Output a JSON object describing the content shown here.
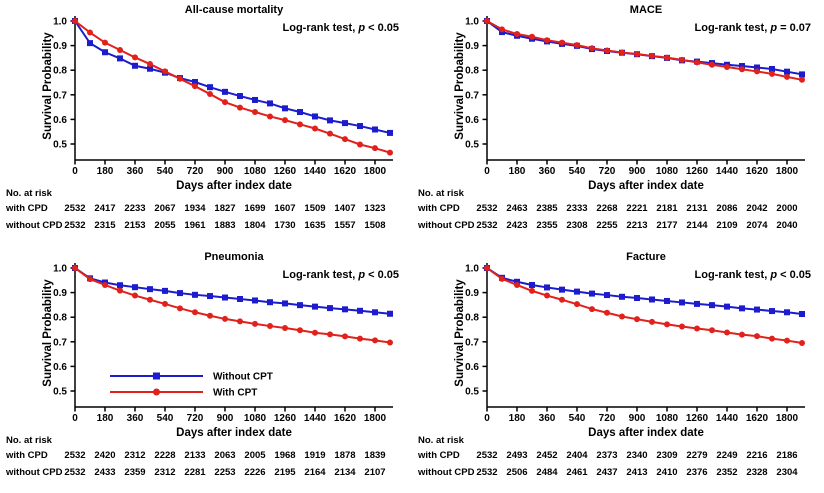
{
  "figure": {
    "background": "#ffffff",
    "colors": {
      "blue": "#1c1ccd",
      "red": "#e0211c",
      "axis": "#000000"
    },
    "ylabel": "Survival Probability",
    "xlabel": "Days after index date",
    "yticks": [
      "1.0",
      "0.9",
      "0.8",
      "0.7",
      "0.6",
      "0.5"
    ],
    "xticks": [
      0,
      180,
      360,
      540,
      720,
      900,
      1080,
      1260,
      1440,
      1620,
      1800
    ],
    "risk_header": "No. at risk",
    "risk_rows": [
      "with CPD",
      "without CPD"
    ],
    "legend": [
      {
        "label": "Without CPT",
        "series": "blue",
        "marker": "square"
      },
      {
        "label": "With CPT",
        "series": "red",
        "marker": "circle"
      }
    ]
  },
  "chart_data": [
    {
      "type": "line",
      "title": "All-cause mortality",
      "annotation": {
        "pre": "Log-rank test, ",
        "p": "p",
        "post": " < 0.05"
      },
      "xlabel": "Days after index date",
      "ylabel": "Survival Probability",
      "ylim": [
        0.5,
        1.0
      ],
      "xlim": [
        0,
        1890
      ],
      "x": [
        0,
        90,
        180,
        270,
        360,
        450,
        540,
        630,
        720,
        810,
        900,
        990,
        1080,
        1170,
        1260,
        1350,
        1440,
        1530,
        1620,
        1710,
        1800,
        1890
      ],
      "series": [
        {
          "name": "Without CPT",
          "color": "#1c1ccd",
          "marker": "square",
          "values": [
            1.0,
            0.91,
            0.873,
            0.848,
            0.818,
            0.806,
            0.79,
            0.768,
            0.752,
            0.731,
            0.712,
            0.695,
            0.679,
            0.665,
            0.645,
            0.63,
            0.612,
            0.596,
            0.585,
            0.573,
            0.559,
            0.545
          ]
        },
        {
          "name": "With CPT",
          "color": "#e0211c",
          "marker": "circle",
          "values": [
            1.0,
            0.953,
            0.912,
            0.882,
            0.852,
            0.825,
            0.795,
            0.765,
            0.735,
            0.703,
            0.67,
            0.648,
            0.63,
            0.612,
            0.597,
            0.58,
            0.563,
            0.542,
            0.52,
            0.498,
            0.483,
            0.465
          ]
        }
      ],
      "legend": false,
      "risk_table": [
        [
          2532,
          2417,
          2233,
          2067,
          1934,
          1827,
          1699,
          1607,
          1509,
          1407,
          1323
        ],
        [
          2532,
          2315,
          2153,
          2055,
          1961,
          1883,
          1804,
          1730,
          1635,
          1557,
          1508
        ]
      ]
    },
    {
      "type": "line",
      "title": "MACE",
      "annotation": {
        "pre": "Log-rank test, ",
        "p": "p",
        "post": " = 0.07"
      },
      "xlabel": "Days after index date",
      "ylabel": "Survival Probability",
      "ylim": [
        0.5,
        1.0
      ],
      "xlim": [
        0,
        1890
      ],
      "x": [
        0,
        90,
        180,
        270,
        360,
        450,
        540,
        630,
        720,
        810,
        900,
        990,
        1080,
        1170,
        1260,
        1350,
        1440,
        1530,
        1620,
        1710,
        1800,
        1890
      ],
      "series": [
        {
          "name": "Without CPT",
          "color": "#1c1ccd",
          "marker": "square",
          "values": [
            1.0,
            0.955,
            0.94,
            0.928,
            0.917,
            0.907,
            0.899,
            0.886,
            0.878,
            0.871,
            0.865,
            0.857,
            0.85,
            0.84,
            0.835,
            0.829,
            0.822,
            0.817,
            0.811,
            0.805,
            0.794,
            0.783
          ]
        },
        {
          "name": "With CPT",
          "color": "#e0211c",
          "marker": "circle",
          "values": [
            1.0,
            0.966,
            0.947,
            0.936,
            0.922,
            0.912,
            0.902,
            0.889,
            0.88,
            0.872,
            0.866,
            0.858,
            0.851,
            0.842,
            0.832,
            0.822,
            0.813,
            0.804,
            0.795,
            0.785,
            0.773,
            0.761
          ]
        }
      ],
      "legend": false,
      "risk_table": [
        [
          2532,
          2463,
          2385,
          2333,
          2268,
          2221,
          2181,
          2131,
          2086,
          2042,
          2000
        ],
        [
          2532,
          2423,
          2355,
          2308,
          2255,
          2213,
          2177,
          2144,
          2109,
          2074,
          2040
        ]
      ]
    },
    {
      "type": "line",
      "title": "Pneumonia",
      "annotation": {
        "pre": "Log-rank test, ",
        "p": "p",
        "post": " < 0.05"
      },
      "xlabel": "Days after index date",
      "ylabel": "Survival Probability",
      "ylim": [
        0.5,
        1.0
      ],
      "xlim": [
        0,
        1890
      ],
      "x": [
        0,
        90,
        180,
        270,
        360,
        450,
        540,
        630,
        720,
        810,
        900,
        990,
        1080,
        1170,
        1260,
        1350,
        1440,
        1530,
        1620,
        1710,
        1800,
        1890
      ],
      "series": [
        {
          "name": "Without CPT",
          "color": "#1c1ccd",
          "marker": "square",
          "values": [
            1.0,
            0.958,
            0.941,
            0.93,
            0.922,
            0.914,
            0.907,
            0.898,
            0.891,
            0.886,
            0.88,
            0.874,
            0.868,
            0.861,
            0.856,
            0.849,
            0.843,
            0.837,
            0.832,
            0.826,
            0.82,
            0.814
          ]
        },
        {
          "name": "With CPT",
          "color": "#e0211c",
          "marker": "circle",
          "values": [
            1.0,
            0.955,
            0.931,
            0.908,
            0.888,
            0.871,
            0.854,
            0.836,
            0.82,
            0.806,
            0.793,
            0.783,
            0.773,
            0.764,
            0.756,
            0.747,
            0.737,
            0.73,
            0.722,
            0.713,
            0.706,
            0.697
          ]
        }
      ],
      "legend": true,
      "risk_table": [
        [
          2532,
          2420,
          2312,
          2228,
          2133,
          2063,
          2005,
          1968,
          1919,
          1878,
          1839
        ],
        [
          2532,
          2433,
          2359,
          2312,
          2281,
          2253,
          2226,
          2195,
          2164,
          2134,
          2107
        ]
      ]
    },
    {
      "type": "line",
      "title": "Facture",
      "annotation": {
        "pre": "Log-rank test, ",
        "p": "p",
        "post": " < 0.05"
      },
      "xlabel": "Days after index date",
      "ylabel": "Survival Probability",
      "ylim": [
        0.5,
        1.0
      ],
      "xlim": [
        0,
        1890
      ],
      "x": [
        0,
        90,
        180,
        270,
        360,
        450,
        540,
        630,
        720,
        810,
        900,
        990,
        1080,
        1170,
        1260,
        1350,
        1440,
        1530,
        1620,
        1710,
        1800,
        1890
      ],
      "series": [
        {
          "name": "Without CPT",
          "color": "#1c1ccd",
          "marker": "square",
          "values": [
            1.0,
            0.96,
            0.944,
            0.931,
            0.921,
            0.912,
            0.904,
            0.896,
            0.89,
            0.883,
            0.878,
            0.872,
            0.866,
            0.86,
            0.854,
            0.849,
            0.843,
            0.836,
            0.831,
            0.825,
            0.82,
            0.813
          ]
        },
        {
          "name": "With CPT",
          "color": "#e0211c",
          "marker": "circle",
          "values": [
            1.0,
            0.956,
            0.931,
            0.907,
            0.888,
            0.871,
            0.853,
            0.833,
            0.818,
            0.803,
            0.792,
            0.781,
            0.771,
            0.762,
            0.754,
            0.747,
            0.738,
            0.729,
            0.723,
            0.713,
            0.705,
            0.695
          ]
        }
      ],
      "legend": false,
      "risk_table": [
        [
          2532,
          2493,
          2452,
          2404,
          2373,
          2340,
          2309,
          2279,
          2249,
          2216,
          2186
        ],
        [
          2532,
          2506,
          2484,
          2461,
          2437,
          2413,
          2410,
          2376,
          2352,
          2328,
          2304
        ]
      ]
    }
  ]
}
